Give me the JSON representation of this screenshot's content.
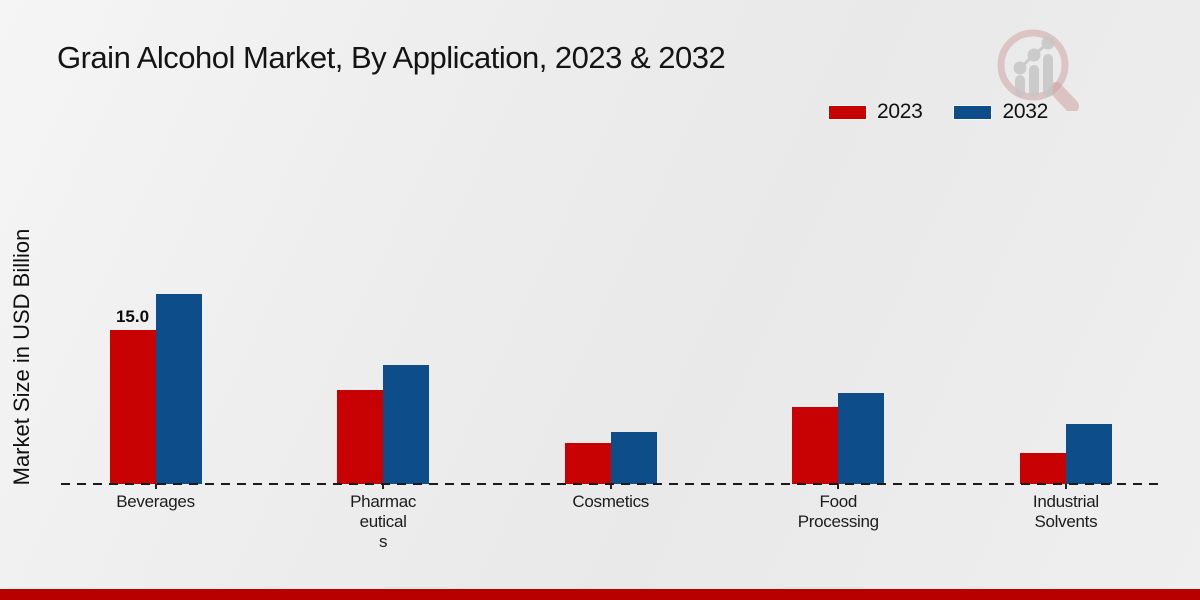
{
  "title": "Grain Alcohol Market, By Application, 2023 & 2032",
  "branding": {
    "logo_icon": "magnifier-bar-chart-logo",
    "footer_band_color": "#b80000",
    "logo_ring_color": "#cf9d9d",
    "logo_bars_color": "#c6c6c6"
  },
  "legend": {
    "position": "top-right",
    "items": [
      {
        "label": "2023",
        "color": "#c80202"
      },
      {
        "label": "2032",
        "color": "#0d4d8a"
      }
    ]
  },
  "chart_data": {
    "type": "bar",
    "title": "Grain Alcohol Market, By Application, 2023 & 2032",
    "xlabel": "",
    "ylabel": "Market Size in USD Billion",
    "categories": [
      "Beverages",
      "Pharmaceuticals",
      "Cosmetics",
      "Food Processing",
      "Industrial Solvents"
    ],
    "category_label_lines": [
      [
        "Beverages"
      ],
      [
        "Pharmac",
        "eutical",
        "s"
      ],
      [
        "Cosmetics"
      ],
      [
        "Food",
        "Processing"
      ],
      [
        "Industrial",
        "Solvents"
      ]
    ],
    "series": [
      {
        "name": "2023",
        "color": "#c80202",
        "values": [
          15.0,
          9.2,
          4.0,
          7.5,
          3.0
        ],
        "value_labels": [
          "15.0",
          "",
          "",
          "",
          ""
        ]
      },
      {
        "name": "2032",
        "color": "#0d4d8a",
        "values": [
          18.5,
          11.6,
          5.1,
          8.9,
          5.8
        ],
        "value_labels": [
          "",
          "",
          "",
          "",
          ""
        ]
      }
    ],
    "ylim": [
      0,
      20
    ],
    "grid": false,
    "y_axis_ticks_visible": false,
    "baseline_style": "dashed",
    "legend_position": "top-right"
  }
}
